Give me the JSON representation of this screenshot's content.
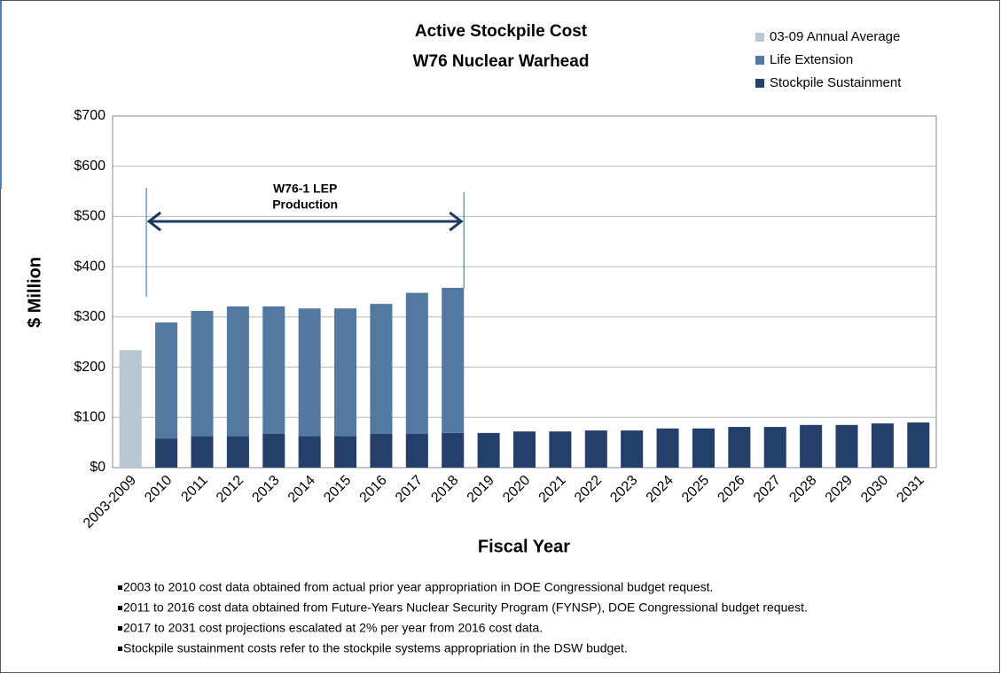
{
  "chart_data": {
    "type": "stacked_bar",
    "title": "Active Stockpile Cost",
    "subtitle": "W76 Nuclear Warhead",
    "y_label": "$ Million",
    "x_label": "Fiscal Year",
    "categories": [
      "2003-2009",
      "2010",
      "2011",
      "2012",
      "2013",
      "2014",
      "2015",
      "2016",
      "2017",
      "2018",
      "2019",
      "2020",
      "2021",
      "2022",
      "2023",
      "2024",
      "2025",
      "2026",
      "2027",
      "2028",
      "2029",
      "2030",
      "2031"
    ],
    "series": [
      {
        "name": "03-09  Annual Average",
        "color": "#b9c7d1",
        "values": [
          234,
          null,
          null,
          null,
          null,
          null,
          null,
          null,
          null,
          null,
          null,
          null,
          null,
          null,
          null,
          null,
          null,
          null,
          null,
          null,
          null,
          null,
          null
        ]
      },
      {
        "name": "Life Extension",
        "color": "#5379a0",
        "values": [
          null,
          231,
          249,
          258,
          254,
          254,
          254,
          259,
          281,
          289,
          null,
          null,
          null,
          null,
          null,
          null,
          null,
          null,
          null,
          null,
          null,
          null,
          null
        ]
      },
      {
        "name": "Stockpile Sustainment",
        "color": "#243f6a",
        "values": [
          null,
          58,
          63,
          63,
          67,
          63,
          63,
          67,
          67,
          69,
          69,
          72,
          72,
          74,
          74,
          78,
          78,
          81,
          81,
          85,
          85,
          88,
          90
        ]
      }
    ],
    "ylim": [
      0,
      700
    ],
    "yticks": [
      {
        "value": 0,
        "label": "$0"
      },
      {
        "value": 100,
        "label": "$100"
      },
      {
        "value": 200,
        "label": "$200"
      },
      {
        "value": 300,
        "label": "$300"
      },
      {
        "value": 400,
        "label": "$400"
      },
      {
        "value": 500,
        "label": "$500"
      },
      {
        "value": 600,
        "label": "$600"
      },
      {
        "value": 700,
        "label": "$700"
      }
    ],
    "grid": true,
    "legend": "top-right",
    "annotation": [
      "W76-1 LEP",
      "Production"
    ],
    "notes": [
      "2003 to 2010 cost data obtained from actual prior year appropriation in DOE Congressional budget request.",
      "2011 to 2016 cost data obtained from Future-Years Nuclear Security Program (FYNSP), DOE Congressional budget request.",
      "2017 to 2031 cost projections escalated at 2% per year from 2016 cost data.",
      "Stockpile sustainment costs refer to the stockpile systems appropriation in the DSW budget."
    ]
  }
}
